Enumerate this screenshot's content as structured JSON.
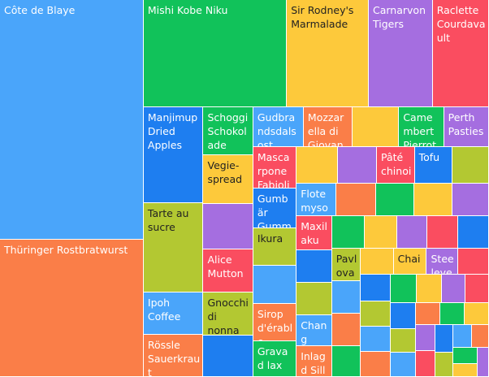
{
  "chart_data": {
    "type": "treemap",
    "title": "",
    "palette": {
      "blue": "#4aa5fa",
      "orange": "#fa7e48",
      "green": "#11c25a",
      "yellow": "#fdc93b",
      "purple": "#a56ee0",
      "red": "#fa4d60",
      "olive": "#b3c832",
      "royal": "#1e7ef0"
    },
    "items": [
      {
        "name": "Côte de Blaye",
        "value": 63,
        "color": "blue"
      },
      {
        "name": "Thüringer Rostbratwurst",
        "value": 36,
        "color": "orange"
      },
      {
        "name": "Mishi Kobe Niku",
        "value": 28,
        "color": "green"
      },
      {
        "name": "Sir Rodney's Marmalade",
        "value": 16,
        "color": "yellow"
      },
      {
        "name": "Carnarvon Tigers",
        "value": 12.5,
        "color": "purple"
      },
      {
        "name": "Raclette Courdavault",
        "value": 11,
        "color": "red"
      },
      {
        "name": "Manjimup Dried Apples",
        "value": 10.5,
        "color": "royal"
      },
      {
        "name": "Tarte au sucre",
        "value": 9.8,
        "color": "olive"
      },
      {
        "name": "Ipoh Coffee",
        "value": 4.6,
        "color": "blue"
      },
      {
        "name": "Rössle Sauerkraut",
        "value": 4.6,
        "color": "orange"
      },
      {
        "name": "Schoggi Schokolade",
        "value": 4.4,
        "color": "green"
      },
      {
        "name": "Vegie-spread",
        "value": 4.4,
        "color": "yellow"
      },
      {
        "name": "",
        "value": 4.2,
        "color": "purple"
      },
      {
        "name": "Alice Mutton",
        "value": 3.9,
        "color": "red"
      },
      {
        "name": "",
        "value": 3.8,
        "color": "royal"
      },
      {
        "name": "Gnocchi di nonna Alice",
        "value": 3.9,
        "color": "olive"
      },
      {
        "name": "Gudbrandsdalsost",
        "value": 3.7,
        "color": "blue"
      },
      {
        "name": "Mozzarella di Giovanni",
        "value": 3.6,
        "color": "orange"
      },
      {
        "name": "Camembert Pierrot",
        "value": 3.3,
        "color": "green"
      },
      {
        "name": "",
        "value": 3.4,
        "color": "yellow"
      },
      {
        "name": "Perth Pasties",
        "value": 3.3,
        "color": "purple"
      },
      {
        "name": "Mascarpone Fabioli",
        "value": 3.3,
        "color": "red"
      },
      {
        "name": "Gumbär Gummibärchen",
        "value": 3.1,
        "color": "royal"
      },
      {
        "name": "Ikura",
        "value": 3.0,
        "color": "olive"
      },
      {
        "name": "",
        "value": 3.0,
        "color": "blue"
      },
      {
        "name": "Sirop d'érable",
        "value": 3.0,
        "color": "orange"
      },
      {
        "name": "Gravad lax",
        "value": 2.8,
        "color": "green"
      },
      {
        "name": "",
        "value": 2.7,
        "color": "yellow"
      },
      {
        "name": "",
        "value": 2.6,
        "color": "purple"
      },
      {
        "name": "Pâté chinois",
        "value": 2.5,
        "color": "red"
      },
      {
        "name": "Tofu",
        "value": 2.5,
        "color": "royal"
      },
      {
        "name": "",
        "value": 2.4,
        "color": "olive"
      },
      {
        "name": "Flotemysost",
        "value": 2.4,
        "color": "blue"
      },
      {
        "name": "",
        "value": 2.4,
        "color": "orange"
      },
      {
        "name": "",
        "value": 2.3,
        "color": "green"
      },
      {
        "name": "",
        "value": 2.3,
        "color": "yellow"
      },
      {
        "name": "",
        "value": 2.2,
        "color": "purple"
      },
      {
        "name": "Maxilaku",
        "value": 2.2,
        "color": "red"
      },
      {
        "name": "",
        "value": 2.1,
        "color": "royal"
      },
      {
        "name": "",
        "value": 2.1,
        "color": "olive"
      },
      {
        "name": "Chang",
        "value": 2.0,
        "color": "blue"
      },
      {
        "name": "Inlagd Sill",
        "value": 2.0,
        "color": "orange"
      },
      {
        "name": "",
        "value": 1.9,
        "color": "green"
      },
      {
        "name": "",
        "value": 1.9,
        "color": "yellow"
      },
      {
        "name": "",
        "value": 1.8,
        "color": "purple"
      },
      {
        "name": "",
        "value": 1.8,
        "color": "red"
      },
      {
        "name": "",
        "value": 1.8,
        "color": "royal"
      },
      {
        "name": "Pavlova",
        "value": 1.7,
        "color": "olive"
      },
      {
        "name": "",
        "value": 1.7,
        "color": "blue"
      },
      {
        "name": "",
        "value": 1.7,
        "color": "orange"
      },
      {
        "name": "",
        "value": 1.6,
        "color": "green"
      },
      {
        "name": "",
        "value": 1.6,
        "color": "yellow"
      },
      {
        "name": "Chai",
        "value": 1.6,
        "color": "yellow"
      },
      {
        "name": "Steeleye Stout",
        "value": 1.5,
        "color": "purple"
      },
      {
        "name": "",
        "value": 1.5,
        "color": "red"
      },
      {
        "name": "",
        "value": 1.5,
        "color": "royal"
      },
      {
        "name": "",
        "value": 1.4,
        "color": "olive"
      },
      {
        "name": "",
        "value": 1.4,
        "color": "blue"
      },
      {
        "name": "",
        "value": 1.4,
        "color": "orange"
      },
      {
        "name": "",
        "value": 1.3,
        "color": "green"
      },
      {
        "name": "",
        "value": 1.3,
        "color": "yellow"
      },
      {
        "name": "",
        "value": 1.2,
        "color": "purple"
      },
      {
        "name": "",
        "value": 1.2,
        "color": "red"
      },
      {
        "name": "",
        "value": 1.2,
        "color": "royal"
      },
      {
        "name": "",
        "value": 1.1,
        "color": "olive"
      },
      {
        "name": "",
        "value": 1.1,
        "color": "blue"
      },
      {
        "name": "",
        "value": 1.0,
        "color": "orange"
      },
      {
        "name": "",
        "value": 1.0,
        "color": "green"
      },
      {
        "name": "",
        "value": 1.0,
        "color": "yellow"
      },
      {
        "name": "",
        "value": 0.9,
        "color": "purple"
      },
      {
        "name": "",
        "value": 0.9,
        "color": "red"
      },
      {
        "name": "",
        "value": 0.9,
        "color": "royal"
      },
      {
        "name": "",
        "value": 0.8,
        "color": "olive"
      },
      {
        "name": "",
        "value": 0.8,
        "color": "blue"
      },
      {
        "name": "",
        "value": 0.7,
        "color": "orange"
      },
      {
        "name": "",
        "value": 0.7,
        "color": "green"
      },
      {
        "name": "",
        "value": 0.6,
        "color": "yellow"
      },
      {
        "name": "",
        "value": 0.6,
        "color": "purple"
      }
    ]
  }
}
